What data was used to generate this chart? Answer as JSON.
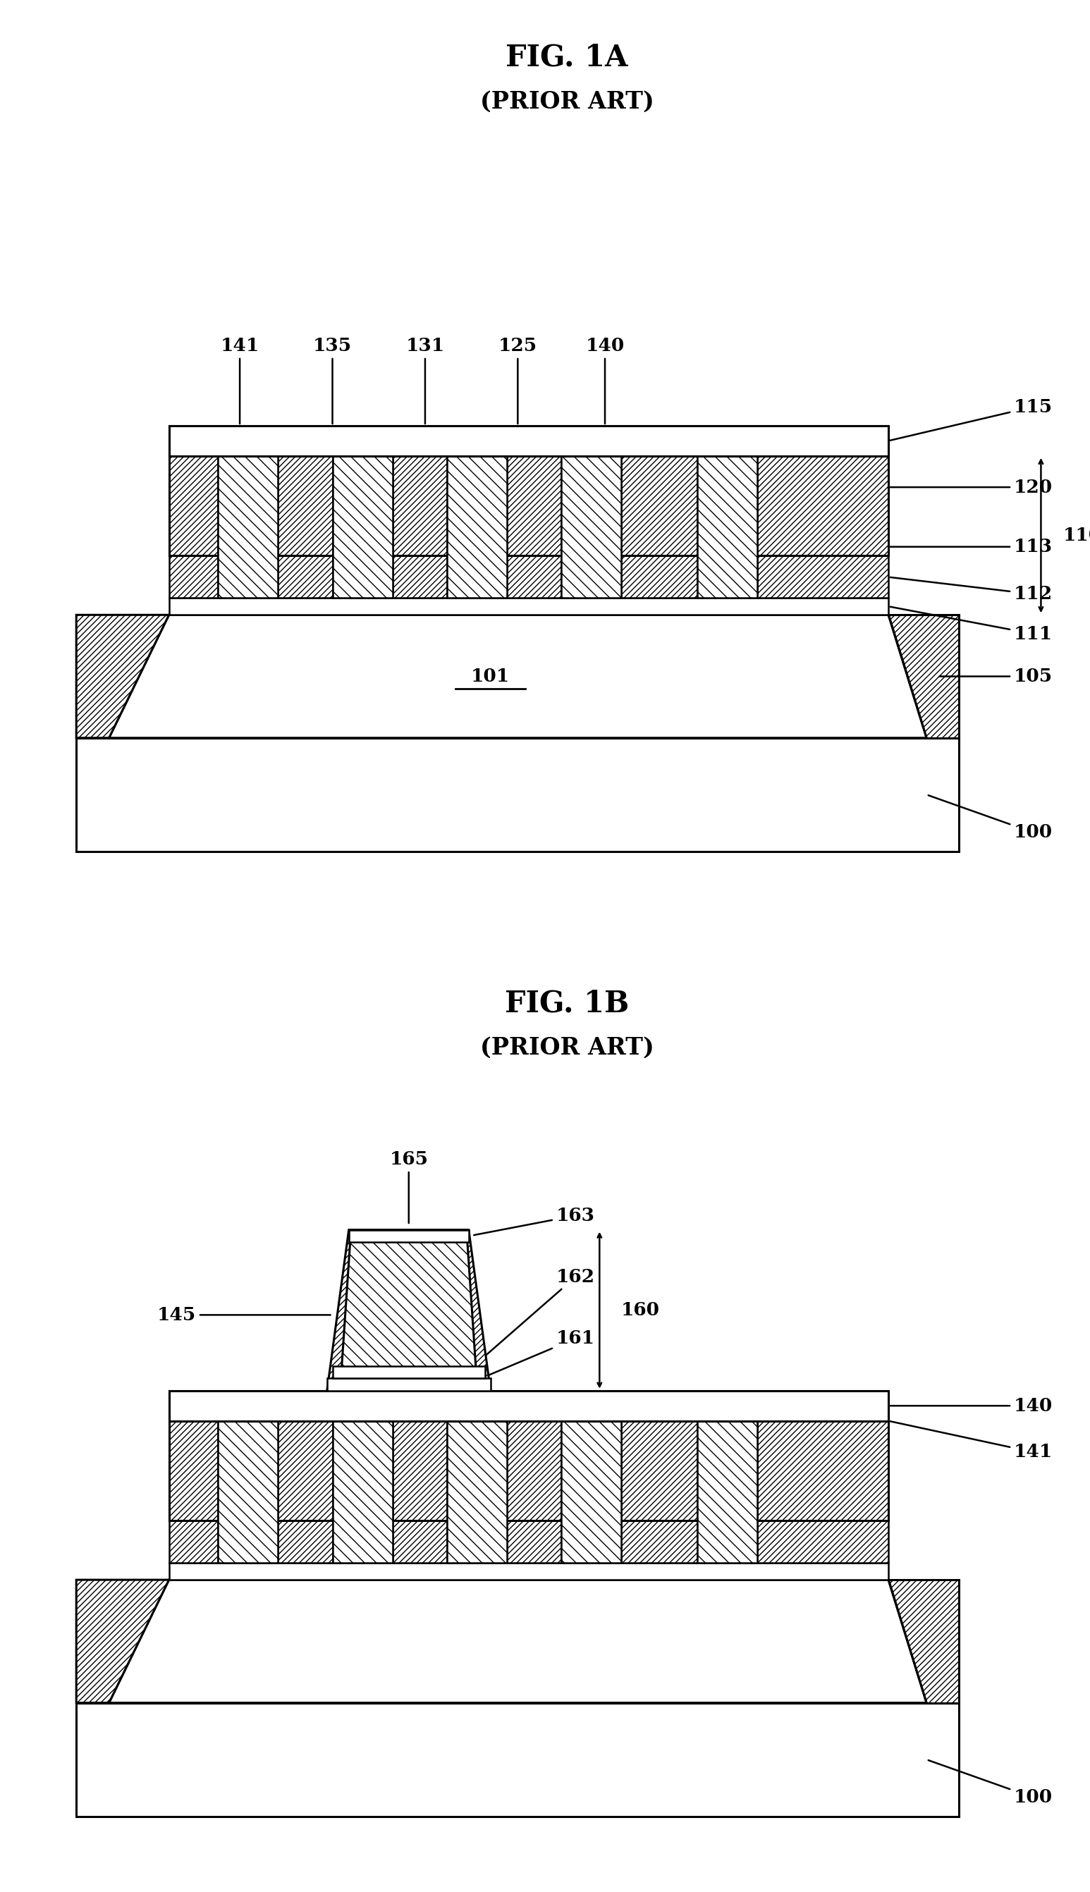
{
  "fig_width": 15.46,
  "fig_height": 26.84,
  "bg_color": "#ffffff",
  "fig1a_title": "FIG. 1A",
  "fig1a_subtitle": "(PRIOR ART)",
  "fig1b_title": "FIG. 1B",
  "fig1b_subtitle": "(PRIOR ART)",
  "title_fontsize": 30,
  "subtitle_fontsize": 24,
  "label_fontsize": 19
}
